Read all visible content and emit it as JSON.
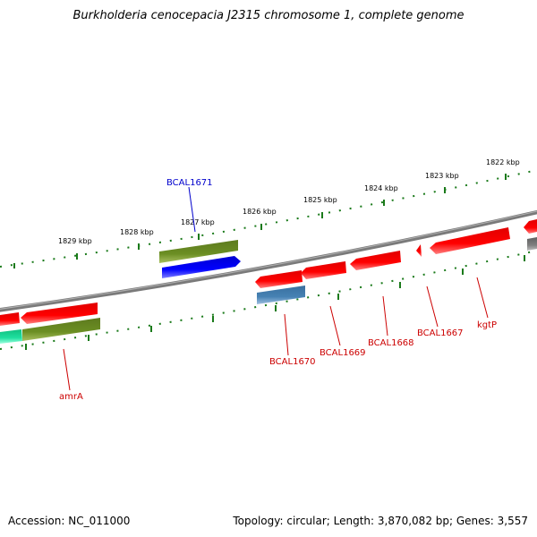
{
  "title": "Burkholderia cenocepacia J2315 chromosome 1, complete genome",
  "accession": "Accession: NC_011000",
  "topology": "Topology: circular; Length: 3,870,082 bp; Genes: 3,557",
  "colors": {
    "backbone": "#808080",
    "tick": "#1a7a1a",
    "forward_gene": "#6b8e23",
    "reverse_gene": "#ff0000",
    "highlight_gene": "#0000ff",
    "steelblue_gene": "#4682b4",
    "cyan_gene": "#20e0a0",
    "label_red": "#cc0000",
    "label_blue": "#0000cc"
  },
  "scale_labels": [
    "1822 kbp",
    "1823 kbp",
    "1824 kbp",
    "1825 kbp",
    "1826 kbp",
    "1827 kbp",
    "1828 kbp",
    "1829 kbp"
  ],
  "gene_labels": [
    {
      "name": "BCAL1671",
      "color": "blue"
    },
    {
      "name": "kgtP",
      "color": "red"
    },
    {
      "name": "BCAL1667",
      "color": "red"
    },
    {
      "name": "BCAL1668",
      "color": "red"
    },
    {
      "name": "BCAL1669",
      "color": "red"
    },
    {
      "name": "BCAL1670",
      "color": "red"
    },
    {
      "name": "amrA",
      "color": "red"
    }
  ]
}
